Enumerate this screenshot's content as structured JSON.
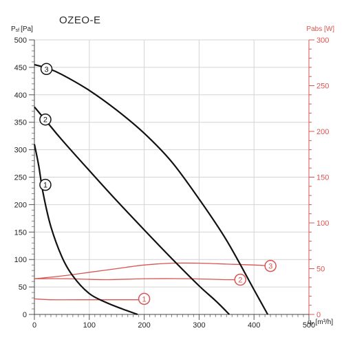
{
  "chart_data": {
    "type": "line",
    "title": "OZEO-E",
    "left_axis": {
      "label_main": "P",
      "label_sub": "sf",
      "label_unit": "[Pa]",
      "ylim": [
        0,
        500
      ],
      "ticks": [
        0,
        50,
        100,
        150,
        200,
        250,
        300,
        350,
        400,
        450,
        500
      ],
      "color": "#222222"
    },
    "right_axis": {
      "label": "Pabs [W]",
      "ylim": [
        0,
        300
      ],
      "ticks": [
        0,
        50,
        100,
        150,
        200,
        250,
        300
      ],
      "color": "#d9534f"
    },
    "x_axis": {
      "label": "qᵥ [m³/h]",
      "xlim": [
        0,
        500
      ],
      "ticks": [
        0,
        100,
        200,
        300,
        400,
        500
      ]
    },
    "grid": true,
    "pressure_series": [
      {
        "name": "1",
        "x": [
          0,
          8,
          16,
          30,
          50,
          70,
          100,
          130,
          160,
          188
        ],
        "y": [
          310,
          270,
          220,
          160,
          105,
          70,
          38,
          22,
          10,
          0
        ],
        "label_at": [
          20,
          236
        ]
      },
      {
        "name": "2",
        "x": [
          0,
          25,
          50,
          100,
          150,
          200,
          250,
          300,
          330,
          355
        ],
        "y": [
          378,
          348,
          318,
          262,
          207,
          154,
          102,
          52,
          25,
          0
        ],
        "label_at": [
          20,
          355
        ]
      },
      {
        "name": "3",
        "x": [
          0,
          25,
          50,
          100,
          150,
          200,
          250,
          300,
          350,
          400,
          425
        ],
        "y": [
          455,
          448,
          437,
          408,
          372,
          330,
          278,
          210,
          135,
          45,
          0
        ],
        "label_at": [
          22,
          447
        ]
      }
    ],
    "power_series": [
      {
        "name": "1",
        "x": [
          0,
          30,
          80,
          150,
          200
        ],
        "y": [
          17,
          16,
          16,
          16,
          16
        ],
        "label_at": [
          200,
          17
        ]
      },
      {
        "name": "2",
        "x": [
          0,
          60,
          130,
          200,
          280,
          350,
          375
        ],
        "y": [
          39,
          39,
          38,
          39,
          39,
          38,
          38
        ],
        "label_at": [
          375,
          38
        ]
      },
      {
        "name": "3",
        "x": [
          0,
          50,
          100,
          150,
          200,
          250,
          300,
          350,
          400,
          430
        ],
        "y": [
          39,
          42,
          46,
          50,
          54,
          56,
          56,
          55,
          54,
          53
        ],
        "label_at": [
          430,
          53
        ]
      }
    ]
  }
}
